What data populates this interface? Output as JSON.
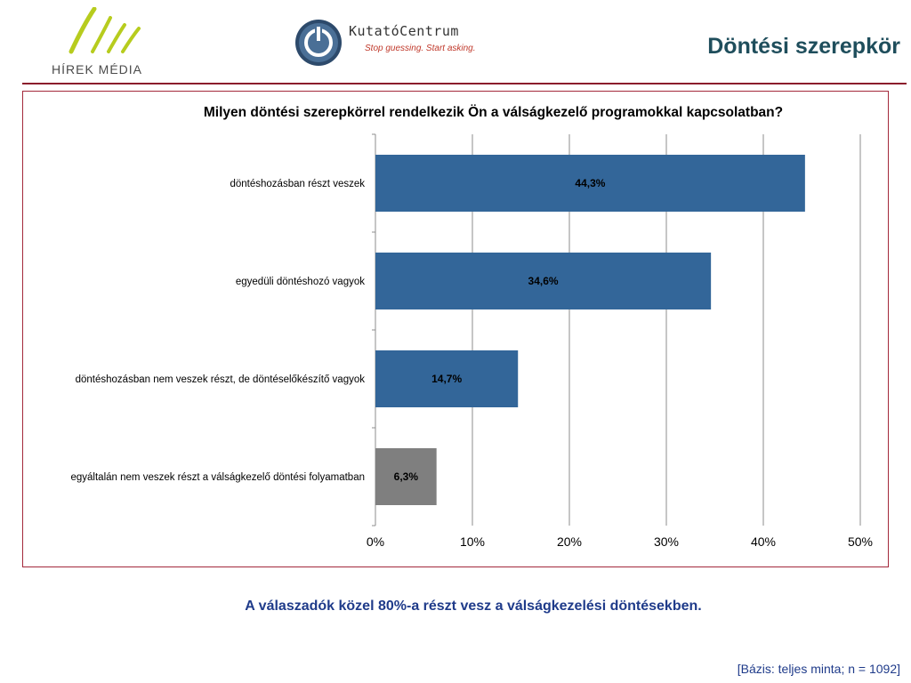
{
  "header": {
    "logo_left_text": "HÍREK MÉDIA",
    "logo_right_name": "KutatóCentrum",
    "logo_right_slogan": "Stop guessing. Start asking.",
    "slide_title": "Döntési szerepkör"
  },
  "colors": {
    "title": "#1f4e5c",
    "accent_rule": "#8b1d2c",
    "bar_primary": "#336699",
    "bar_secondary": "#7f7f7f",
    "logo_green": "#b7cc1e",
    "text_blue": "#1f3b8a"
  },
  "chart_data": {
    "type": "bar",
    "orientation": "horizontal",
    "title": "Milyen döntési szerepkörrel rendelkezik Ön a válságkezelő programokkal kapcsolatban?",
    "categories": [
      "döntéshozásban részt veszek",
      "egyedüli döntéshozó vagyok",
      "döntéshozásban nem veszek részt, de döntéselőkészítő vagyok",
      "egyáltalán nem veszek részt a válságkezelő döntési folyamatban"
    ],
    "values": [
      44.3,
      34.6,
      14.7,
      6.3
    ],
    "data_labels": [
      "44,3%",
      "34,6%",
      "14,7%",
      "6,3%"
    ],
    "bar_colors": [
      "#336699",
      "#336699",
      "#336699",
      "#7f7f7f"
    ],
    "xlim": [
      0,
      50
    ],
    "xticks": [
      "0%",
      "10%",
      "20%",
      "30%",
      "40%",
      "50%"
    ],
    "grid": "vertical",
    "legend": "none"
  },
  "footer": {
    "conclusion": "A válaszadók közel 80%-a részt vesz a válságkezelési döntésekben.",
    "base": "[Bázis: teljes minta; n = 1092]"
  }
}
